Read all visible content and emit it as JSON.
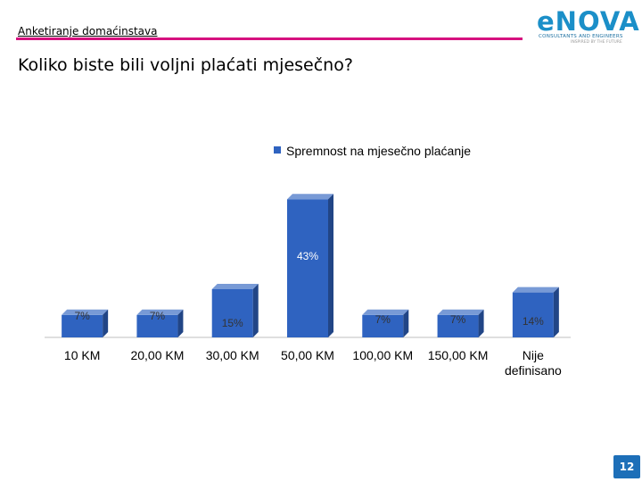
{
  "header": {
    "label": "Anketiranje domaćinstava"
  },
  "logo": {
    "word": "eNOVA",
    "subtitle": "CONSULTANTS AND ENGINEERS",
    "tagline": "INSPIRED BY THE FUTURE"
  },
  "page": {
    "title": "Koliko biste bili voljni plaćati mjesečno?",
    "number": "12"
  },
  "colors": {
    "accent": "#d6117f",
    "bar": "#2f63c0",
    "brand": "#1b8fc8"
  },
  "chart_data": {
    "type": "bar",
    "categories": [
      "10 KM",
      "20,00 KM",
      "30,00 KM",
      "50,00 KM",
      "100,00 KM",
      "150,00 KM",
      "Nije definisano"
    ],
    "series": [
      {
        "name": "Spremnost na mjesečno plaćanje",
        "values": [
          7,
          7,
          15,
          43,
          7,
          7,
          14
        ]
      }
    ],
    "data_labels": [
      "7%",
      "7%",
      "15%",
      "43%",
      "7%",
      "7%",
      "14%"
    ],
    "unit": "%",
    "legend": "top-right",
    "grid": false,
    "ylim": [
      0,
      50
    ]
  }
}
